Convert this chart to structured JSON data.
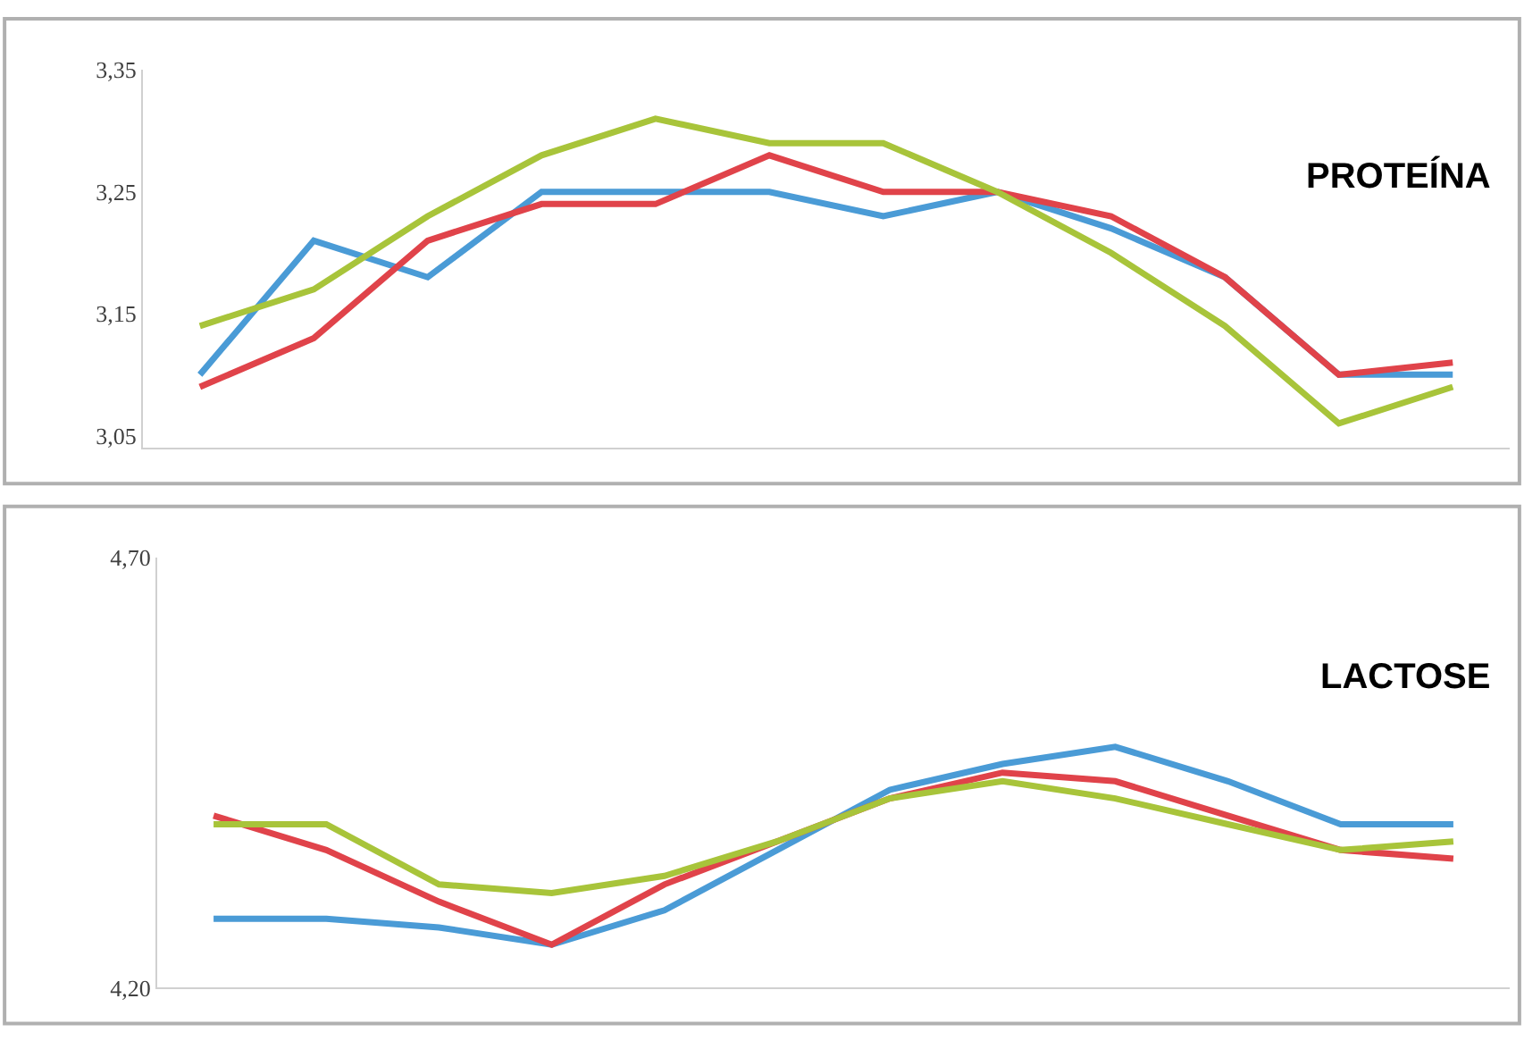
{
  "chart_data": [
    {
      "type": "line",
      "title": "PROTEÍNA",
      "categories": [
        null,
        null,
        null,
        null,
        null,
        null,
        null,
        null,
        null,
        null,
        null,
        null
      ],
      "series": [
        {
          "color": "#4a9bd6",
          "values": [
            3.1,
            3.21,
            3.18,
            3.25,
            3.25,
            3.25,
            3.23,
            3.25,
            3.22,
            3.18,
            3.1,
            3.1
          ]
        },
        {
          "color": "#e0434a",
          "values": [
            3.09,
            3.13,
            3.21,
            3.24,
            3.24,
            3.28,
            3.25,
            3.25,
            3.23,
            3.18,
            3.1,
            3.11
          ]
        },
        {
          "color": "#a8c43a",
          "values": [
            3.14,
            3.17,
            3.23,
            3.28,
            3.31,
            3.29,
            3.29,
            3.25,
            3.2,
            3.14,
            3.06,
            3.09
          ]
        }
      ],
      "ylim": [
        3.04,
        3.35
      ],
      "yticks": [
        {
          "value": 3.05,
          "label": "3,05"
        },
        {
          "value": 3.15,
          "label": "3,15"
        },
        {
          "value": 3.25,
          "label": "3,25"
        },
        {
          "value": 3.35,
          "label": "3,35"
        }
      ],
      "tick_labels": "y",
      "grid": false,
      "marker": "none",
      "line_style": "solid"
    },
    {
      "type": "line",
      "title": "LACTOSE",
      "categories": [
        null,
        null,
        null,
        null,
        null,
        null,
        null,
        null,
        null,
        null,
        null,
        null
      ],
      "series": [
        {
          "color": "#4a9bd6",
          "values": [
            4.28,
            4.28,
            4.27,
            4.25,
            4.29,
            4.36,
            4.43,
            4.46,
            4.48,
            4.44,
            4.39,
            4.39
          ]
        },
        {
          "color": "#e0434a",
          "values": [
            4.4,
            4.36,
            4.3,
            4.25,
            4.32,
            4.37,
            4.42,
            4.45,
            4.44,
            4.4,
            4.36,
            4.35
          ]
        },
        {
          "color": "#a8c43a",
          "values": [
            4.39,
            4.39,
            4.32,
            4.31,
            4.33,
            4.37,
            4.42,
            4.44,
            4.42,
            4.39,
            4.36,
            4.37
          ]
        }
      ],
      "ylim": [
        4.2,
        4.7
      ],
      "yticks": [
        {
          "value": 4.2,
          "label": "4,20"
        },
        {
          "value": 4.7,
          "label": "4,70"
        }
      ],
      "tick_labels": "y",
      "grid": false,
      "marker": "none",
      "line_style": "solid"
    }
  ]
}
